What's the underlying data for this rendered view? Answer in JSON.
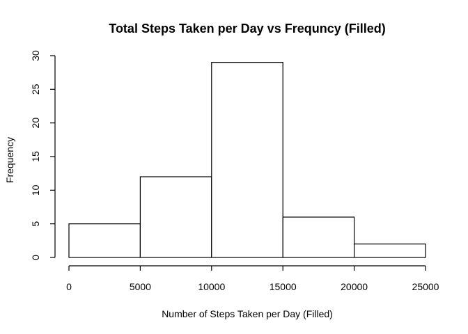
{
  "chart_data": {
    "type": "bar",
    "title": "Total Steps Taken per Day vs Frequncy (Filled)",
    "xlabel": "Number of Steps Taken per Day (Filled)",
    "ylabel": "Frequency",
    "bins": [
      {
        "from": 0,
        "to": 5000,
        "count": 5
      },
      {
        "from": 5000,
        "to": 10000,
        "count": 12
      },
      {
        "from": 10000,
        "to": 15000,
        "count": 29
      },
      {
        "from": 15000,
        "to": 20000,
        "count": 6
      },
      {
        "from": 20000,
        "to": 25000,
        "count": 2
      }
    ],
    "xlim": [
      0,
      25000
    ],
    "ylim": [
      0,
      30
    ],
    "x_ticks": [
      0,
      5000,
      10000,
      15000,
      20000,
      25000
    ],
    "y_ticks": [
      0,
      5,
      10,
      15,
      20,
      25,
      30
    ],
    "grid": false,
    "bar_fill": "#ffffff",
    "bar_stroke": "#000000"
  }
}
